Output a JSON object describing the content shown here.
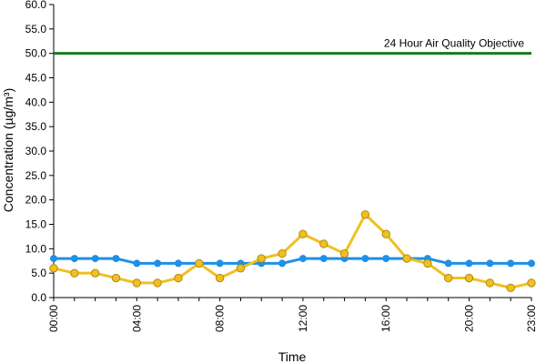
{
  "chart_data": {
    "type": "line",
    "xlabel": "Time",
    "ylabel": "Concentration (µg/m³)",
    "ylim": [
      0,
      60
    ],
    "y_ticks": [
      "0.0",
      "5.0",
      "10.0",
      "15.0",
      "20.0",
      "25.0",
      "30.0",
      "35.0",
      "40.0",
      "45.0",
      "50.0",
      "55.0",
      "60.0"
    ],
    "x_ticks": [
      "00:00",
      "04:00",
      "08:00",
      "12:00",
      "16:00",
      "20:00",
      "23:00"
    ],
    "x_tick_hours": [
      0,
      4,
      8,
      12,
      16,
      20,
      23
    ],
    "x": [
      0,
      1,
      2,
      3,
      4,
      5,
      6,
      7,
      8,
      9,
      10,
      11,
      12,
      13,
      14,
      15,
      16,
      17,
      18,
      19,
      20,
      21,
      22,
      23
    ],
    "grid": false,
    "series": [
      {
        "color": "#f0c020",
        "values": [
          6,
          5,
          5,
          4,
          3,
          3,
          4,
          7,
          4,
          6,
          8,
          9,
          13,
          11,
          9,
          17,
          13,
          8,
          7,
          4,
          4,
          3,
          2,
          3
        ]
      },
      {
        "color": "#1e90e8",
        "values": [
          8,
          8,
          8,
          8,
          7,
          7,
          7,
          7,
          7,
          7,
          7,
          7,
          8,
          8,
          8,
          8,
          8,
          8,
          8,
          7,
          7,
          7,
          7,
          7
        ]
      }
    ],
    "reference_line": {
      "label": "24 Hour Air Quality Objective",
      "value": 50,
      "color": "#1a7a1a"
    }
  }
}
